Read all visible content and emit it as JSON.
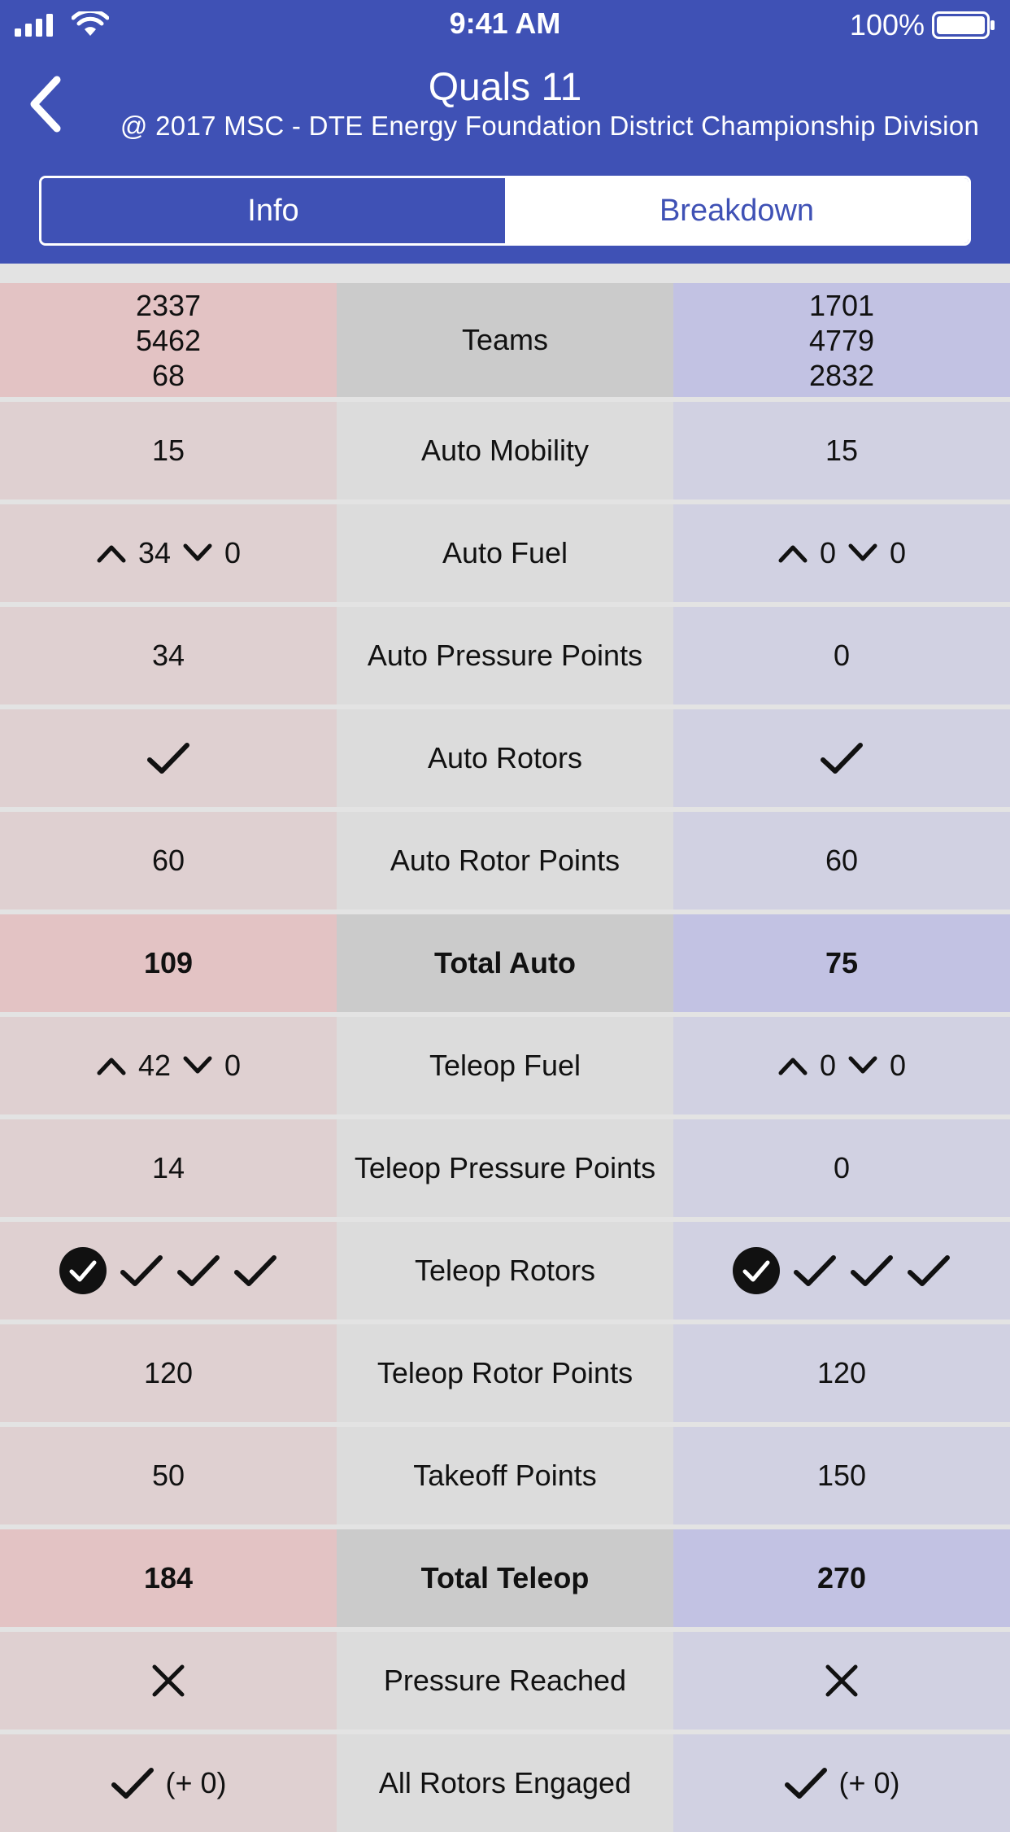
{
  "status_bar": {
    "time": "9:41 AM",
    "battery": "100%"
  },
  "header": {
    "title": "Quals 11",
    "subtitle": "@ 2017 MSC - DTE Energy Foundation District Championship Division",
    "tabs": [
      {
        "label": "Info",
        "active": false
      },
      {
        "label": "Breakdown",
        "active": true
      }
    ]
  },
  "colors": {
    "header_bg": "#3f51b5",
    "red_cell": "#dfd0d1",
    "blue_cell": "#d1d1e2"
  },
  "breakdown": {
    "teams": {
      "label": "Teams",
      "red": [
        "2337",
        "5462",
        "68"
      ],
      "blue": [
        "1701",
        "4779",
        "2832"
      ]
    },
    "auto_mobility": {
      "label": "Auto Mobility",
      "red": "15",
      "blue": "15"
    },
    "auto_fuel": {
      "label": "Auto Fuel",
      "red_high": "34",
      "red_low": "0",
      "blue_high": "0",
      "blue_low": "0"
    },
    "auto_pressure_points": {
      "label": "Auto Pressure Points",
      "red": "34",
      "blue": "0"
    },
    "auto_rotors": {
      "label": "Auto Rotors",
      "red_icon": "check-icon",
      "blue_icon": "check-icon"
    },
    "auto_rotor_points": {
      "label": "Auto Rotor Points",
      "red": "60",
      "blue": "60"
    },
    "total_auto": {
      "label": "Total Auto",
      "red": "109",
      "blue": "75"
    },
    "teleop_fuel": {
      "label": "Teleop Fuel",
      "red_high": "42",
      "red_low": "0",
      "blue_high": "0",
      "blue_low": "0"
    },
    "teleop_pressure_points": {
      "label": "Teleop Pressure Points",
      "red": "14",
      "blue": "0"
    },
    "teleop_rotors": {
      "label": "Teleop Rotors",
      "red_icons": [
        "check-circle-icon",
        "check-icon",
        "check-icon",
        "check-icon"
      ],
      "blue_icons": [
        "check-circle-icon",
        "check-icon",
        "check-icon",
        "check-icon"
      ]
    },
    "teleop_rotor_points": {
      "label": "Teleop Rotor Points",
      "red": "120",
      "blue": "120"
    },
    "takeoff_points": {
      "label": "Takeoff Points",
      "red": "50",
      "blue": "150"
    },
    "total_teleop": {
      "label": "Total Teleop",
      "red": "184",
      "blue": "270"
    },
    "pressure_reached": {
      "label": "Pressure Reached",
      "red_icon": "x-icon",
      "blue_icon": "x-icon"
    },
    "all_rotors_engaged": {
      "label": "All Rotors Engaged",
      "red_bonus": "(+ 0)",
      "blue_bonus": "(+ 0)"
    }
  }
}
